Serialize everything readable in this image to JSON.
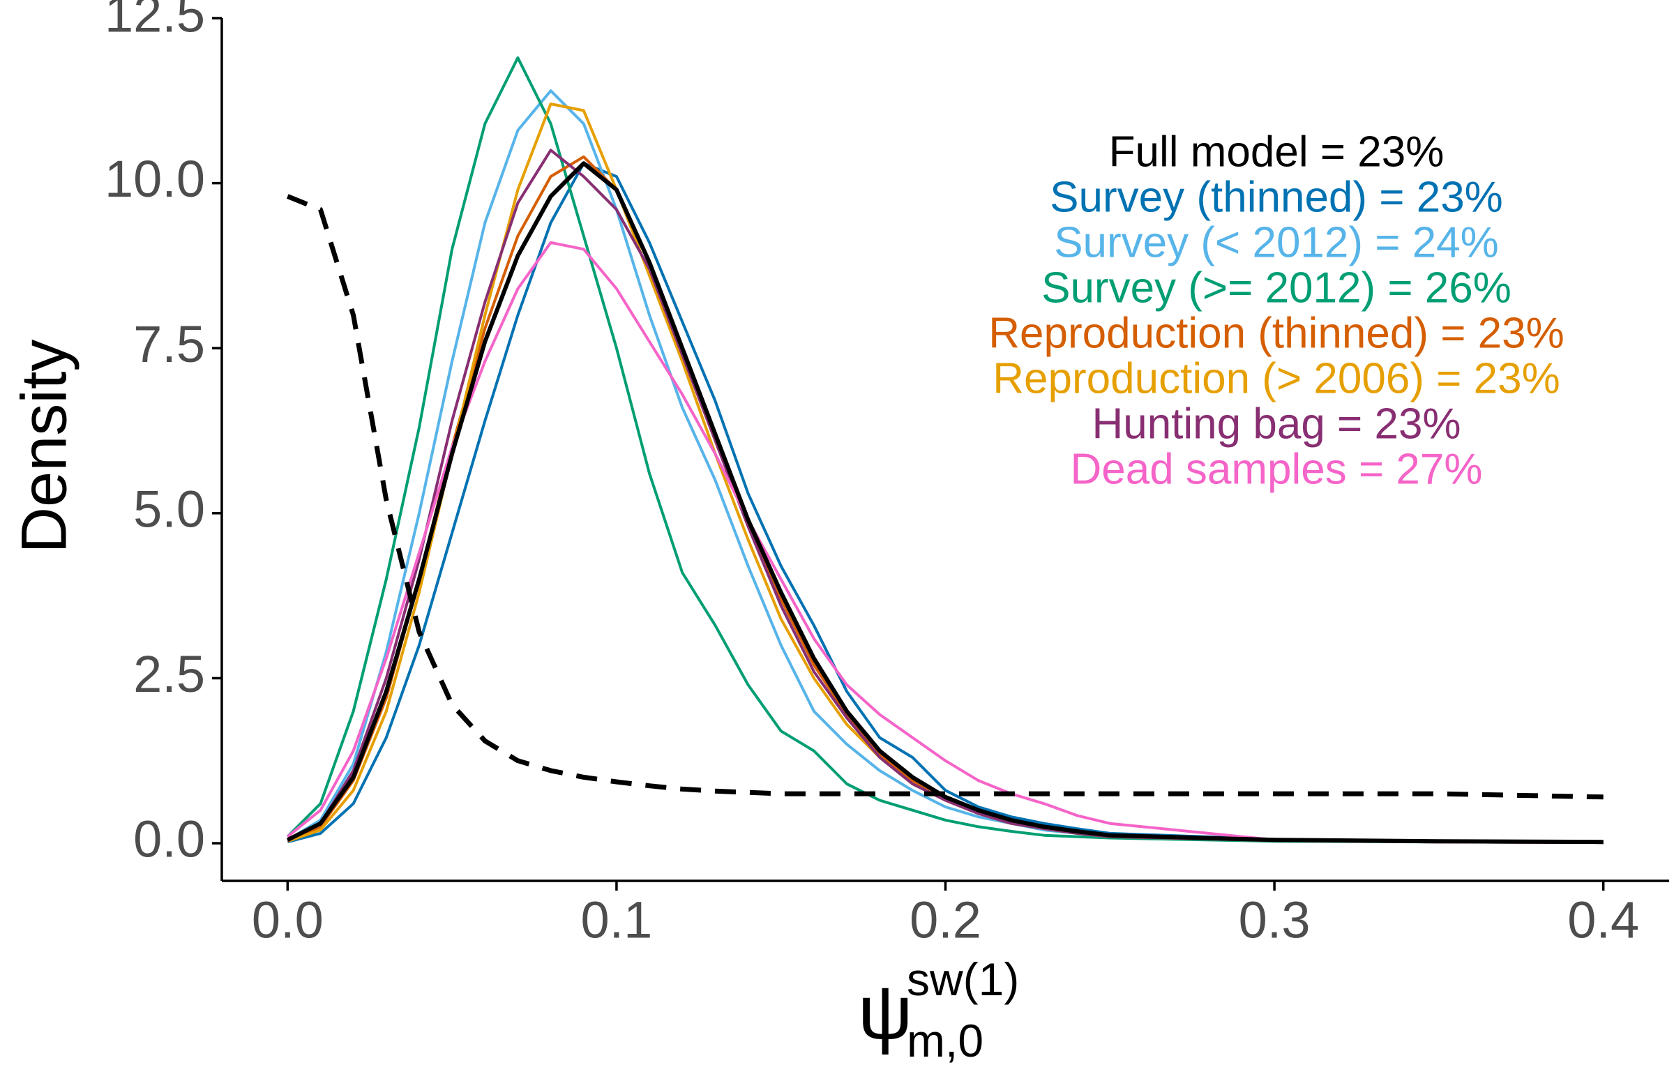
{
  "chart_data": {
    "type": "line",
    "y_label": "Density",
    "x_label": {
      "symbol": "ψ",
      "superscript": "sw(1)",
      "subscript": "m,0"
    },
    "xlim": [
      -0.02,
      0.42
    ],
    "ylim": [
      -0.57,
      12.5
    ],
    "xticks": [
      {
        "value": 0,
        "label": "0.0"
      },
      0.1,
      0.2,
      0.3,
      0.4
    ],
    "yticks": [
      {
        "value": 0,
        "label": "0.0"
      },
      2.5,
      {
        "value": 5,
        "label": "5.0"
      },
      7.5,
      {
        "value": 10,
        "label": "10.0"
      },
      12.5
    ],
    "grid": false,
    "x": [
      0,
      0.01,
      0.02,
      0.03,
      0.04,
      0.05,
      0.06,
      0.07,
      0.08,
      0.09,
      0.1,
      0.11,
      0.12,
      0.13,
      0.14,
      0.15,
      0.16,
      0.17,
      0.18,
      0.19,
      0.2,
      0.21,
      0.22,
      0.23,
      0.24,
      0.25,
      0.3,
      0.35,
      0.4
    ],
    "prior": {
      "color": "#000000",
      "dashed": true,
      "values": [
        9.8,
        9.6,
        8.0,
        5.2,
        3.2,
        2.1,
        1.55,
        1.25,
        1.1,
        1.0,
        0.93,
        0.87,
        0.82,
        0.79,
        0.77,
        0.75,
        0.75,
        0.75,
        0.75,
        0.75,
        0.75,
        0.75,
        0.75,
        0.75,
        0.75,
        0.75,
        0.75,
        0.75,
        0.7
      ]
    },
    "series": [
      {
        "name": "Survey (thinned) = 23%",
        "color": "#0072B2",
        "values": [
          0.02,
          0.15,
          0.6,
          1.6,
          3.0,
          4.7,
          6.4,
          8.0,
          9.4,
          10.3,
          10.1,
          9.1,
          7.9,
          6.7,
          5.3,
          4.2,
          3.3,
          2.3,
          1.6,
          1.3,
          0.8,
          0.55,
          0.4,
          0.3,
          0.22,
          0.15,
          0.06,
          0.03,
          0.02
        ]
      },
      {
        "name": "Survey (< 2012) = 24%",
        "color": "#56B4E9",
        "values": [
          0.05,
          0.35,
          1.2,
          2.9,
          5.0,
          7.3,
          9.4,
          10.8,
          11.4,
          10.9,
          9.6,
          8.0,
          6.6,
          5.5,
          4.2,
          3.0,
          2.0,
          1.5,
          1.1,
          0.8,
          0.55,
          0.4,
          0.3,
          0.2,
          0.15,
          0.1,
          0.04,
          0.02,
          0.01
        ]
      },
      {
        "name": "Survey (>= 2012) = 26%",
        "color": "#009E73",
        "values": [
          0.1,
          0.6,
          2.0,
          4.0,
          6.3,
          9.0,
          10.9,
          11.9,
          10.9,
          9.2,
          7.5,
          5.6,
          4.1,
          3.3,
          2.4,
          1.7,
          1.4,
          0.9,
          0.65,
          0.5,
          0.35,
          0.25,
          0.18,
          0.12,
          0.1,
          0.08,
          0.03,
          0.02,
          0.01
        ]
      },
      {
        "name": "Reproduction (thinned) = 23%",
        "color": "#D55E00",
        "values": [
          0.04,
          0.25,
          0.95,
          2.2,
          4.0,
          6.0,
          7.8,
          9.2,
          10.1,
          10.4,
          9.9,
          8.8,
          7.5,
          6.2,
          4.9,
          3.7,
          2.7,
          1.95,
          1.35,
          0.95,
          0.68,
          0.48,
          0.33,
          0.24,
          0.17,
          0.12,
          0.05,
          0.03,
          0.02
        ]
      },
      {
        "name": "Reproduction (> 2006) = 23%",
        "color": "#E69F00",
        "values": [
          0.03,
          0.2,
          0.8,
          2.0,
          3.8,
          5.9,
          8.0,
          9.9,
          11.2,
          11.1,
          9.9,
          8.6,
          7.3,
          5.9,
          4.6,
          3.4,
          2.5,
          1.8,
          1.3,
          0.9,
          0.65,
          0.45,
          0.3,
          0.22,
          0.15,
          0.1,
          0.04,
          0.02,
          0.01
        ]
      },
      {
        "name": "Hunting bag = 23%",
        "color": "#882E72",
        "values": [
          0.04,
          0.3,
          1.1,
          2.5,
          4.3,
          6.4,
          8.2,
          9.7,
          10.5,
          10.1,
          9.6,
          8.7,
          7.4,
          6.1,
          4.8,
          3.6,
          2.6,
          1.9,
          1.3,
          0.9,
          0.65,
          0.45,
          0.3,
          0.22,
          0.15,
          0.1,
          0.04,
          0.02,
          0.02
        ]
      },
      {
        "name": "Dead samples = 27%",
        "color": "#F564C8",
        "values": [
          0.1,
          0.5,
          1.4,
          2.8,
          4.4,
          6.0,
          7.3,
          8.4,
          9.1,
          9.0,
          8.4,
          7.6,
          6.8,
          5.9,
          4.9,
          4.0,
          3.1,
          2.4,
          1.95,
          1.6,
          1.25,
          0.95,
          0.75,
          0.6,
          0.42,
          0.3,
          0.05,
          0.02,
          0.01
        ]
      },
      {
        "name": "Full model = 23%",
        "color": "#000000",
        "values": [
          0.05,
          0.3,
          1.0,
          2.3,
          4.0,
          5.9,
          7.6,
          8.9,
          9.8,
          10.3,
          9.9,
          8.8,
          7.5,
          6.2,
          4.9,
          3.8,
          2.8,
          2.0,
          1.4,
          1.0,
          0.7,
          0.5,
          0.35,
          0.25,
          0.18,
          0.12,
          0.05,
          0.03,
          0.02
        ]
      }
    ],
    "legend_order": [
      7,
      0,
      1,
      2,
      3,
      4,
      5,
      6
    ]
  }
}
